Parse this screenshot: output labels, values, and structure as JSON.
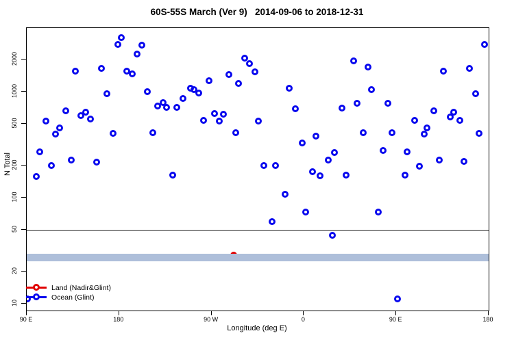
{
  "chart_data": {
    "type": "scatter",
    "title": "60S-55S March (Ver 9)   2014-09-06 to 2018-12-31",
    "xlabel": "Longitude (deg E)",
    "ylabel": "N Total",
    "x_axis": {
      "min": 90,
      "max": 540,
      "ticks": [
        {
          "v": 90,
          "label": "90 E"
        },
        {
          "v": 180,
          "label": "180"
        },
        {
          "v": 270,
          "label": "90 W"
        },
        {
          "v": 360,
          "label": "0"
        },
        {
          "v": 450,
          "label": "90 E"
        },
        {
          "v": 540,
          "label": "180"
        }
      ]
    },
    "y_axis": {
      "scale": "log",
      "min": 8.6,
      "max": 3980,
      "ticks": [
        {
          "v": 10,
          "label": "10"
        },
        {
          "v": 20,
          "label": "20"
        },
        {
          "v": 50,
          "label": "50"
        },
        {
          "v": 100,
          "label": "100"
        },
        {
          "v": 200,
          "label": "200"
        },
        {
          "v": 500,
          "label": "500"
        },
        {
          "v": 1000,
          "label": "1000"
        },
        {
          "v": 2000,
          "label": "2000"
        }
      ]
    },
    "grid": "off",
    "ref_line": {
      "y": 50,
      "color": "#1a1a1a"
    },
    "band": {
      "y_min": 25.2,
      "y_max": 29.6,
      "color": "#aebfda"
    },
    "legend": {
      "position": "bottom-left",
      "entries": [
        {
          "label": "Land (Nadir&Glint)",
          "color": "#e00000"
        },
        {
          "label": "Ocean (Glint)",
          "color": "#0808ee"
        }
      ]
    },
    "series": [
      {
        "name": "Land (Nadir&Glint)",
        "color": "#e00000",
        "marker": "open-circle",
        "points": [
          [
            291.7,
            28.5
          ]
        ]
      },
      {
        "name": "Ocean (Glint)",
        "color": "#0808ee",
        "marker": "open-circle",
        "points": [
          [
            90.5,
            11
          ],
          [
            99.3,
            158
          ],
          [
            102.7,
            270
          ],
          [
            108.5,
            530
          ],
          [
            113.8,
            200
          ],
          [
            118.2,
            395
          ],
          [
            122.3,
            455
          ],
          [
            128.1,
            660
          ],
          [
            133.6,
            225
          ],
          [
            137.4,
            1570
          ],
          [
            143,
            590
          ],
          [
            147.6,
            640
          ],
          [
            151.9,
            550
          ],
          [
            158.1,
            215
          ],
          [
            162.8,
            1650
          ],
          [
            168.1,
            960
          ],
          [
            173.9,
            405
          ],
          [
            178.6,
            2770
          ],
          [
            182.3,
            3230
          ],
          [
            187.5,
            1550
          ],
          [
            192.8,
            1480
          ],
          [
            197.5,
            2270
          ],
          [
            202.4,
            2760
          ],
          [
            207.5,
            1000
          ],
          [
            212.6,
            410
          ],
          [
            217.5,
            730
          ],
          [
            222.7,
            790
          ],
          [
            226,
            710
          ],
          [
            232,
            162
          ],
          [
            236.4,
            705
          ],
          [
            242,
            860
          ],
          [
            249.4,
            1080
          ],
          [
            252.9,
            1050
          ],
          [
            257.6,
            970
          ],
          [
            262.5,
            535
          ],
          [
            267.4,
            1270
          ],
          [
            273.2,
            620
          ],
          [
            277.6,
            530
          ],
          [
            281.4,
            610
          ],
          [
            287.2,
            1450
          ],
          [
            293.9,
            410
          ],
          [
            296.5,
            1190
          ],
          [
            302.1,
            2060
          ],
          [
            307.2,
            1850
          ],
          [
            312.1,
            1540
          ],
          [
            315.4,
            530
          ],
          [
            321,
            200
          ],
          [
            328.8,
            59
          ],
          [
            332.2,
            202
          ],
          [
            342,
            107
          ],
          [
            346,
            1070
          ],
          [
            352,
            690
          ],
          [
            358.2,
            330
          ],
          [
            361.6,
            73
          ],
          [
            368.6,
            176
          ],
          [
            371.6,
            380
          ],
          [
            375.6,
            160
          ],
          [
            383.8,
            225
          ],
          [
            387.8,
            44
          ],
          [
            390.1,
            265
          ],
          [
            397.1,
            700
          ],
          [
            400.9,
            163
          ],
          [
            408.3,
            1960
          ],
          [
            412,
            780
          ],
          [
            417.8,
            410
          ],
          [
            422.3,
            1700
          ],
          [
            426,
            1050
          ],
          [
            432.3,
            73
          ],
          [
            437.2,
            280
          ],
          [
            442,
            780
          ],
          [
            446,
            410
          ],
          [
            451,
            11
          ],
          [
            458.3,
            163
          ],
          [
            460.6,
            270
          ],
          [
            467.9,
            535
          ],
          [
            472.8,
            197
          ],
          [
            477.3,
            400
          ],
          [
            480.2,
            455
          ],
          [
            486.6,
            660
          ],
          [
            491.7,
            225
          ],
          [
            496.2,
            1550
          ],
          [
            502.4,
            580
          ],
          [
            505.8,
            640
          ],
          [
            511.8,
            535
          ],
          [
            516.2,
            220
          ],
          [
            521.3,
            1650
          ],
          [
            527.3,
            960
          ],
          [
            530.9,
            405
          ],
          [
            536.2,
            2790
          ]
        ]
      }
    ]
  }
}
